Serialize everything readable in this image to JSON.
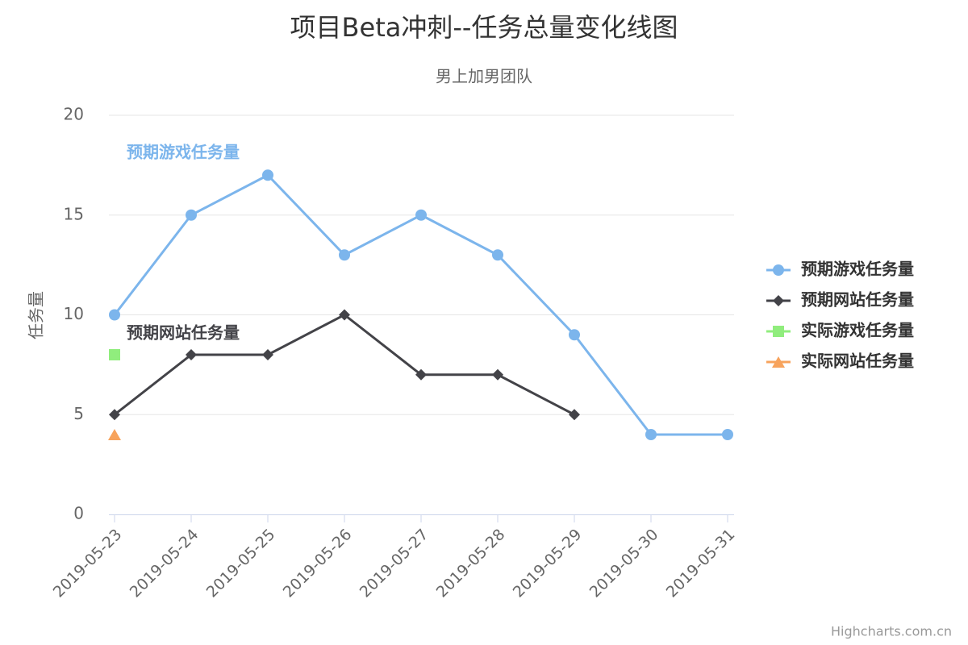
{
  "chart_data": {
    "type": "line",
    "title": "项目Beta冲刺--任务总量变化线图",
    "subtitle": "男上加男团队",
    "y_axis_label": "任务量",
    "credits": "Highcharts.com.cn",
    "categories": [
      "2019-05-23",
      "2019-05-24",
      "2019-05-25",
      "2019-05-26",
      "2019-05-27",
      "2019-05-28",
      "2019-05-29",
      "2019-05-30",
      "2019-05-31"
    ],
    "series": [
      {
        "name": "预期游戏任务量",
        "color": "#7cb5ec",
        "marker": "circle",
        "values": [
          10,
          15,
          17,
          13,
          15,
          13,
          9,
          4,
          4
        ]
      },
      {
        "name": "预期网站任务量",
        "color": "#434348",
        "marker": "diamond",
        "values": [
          5,
          8,
          8,
          10,
          7,
          7,
          5,
          null,
          null
        ]
      },
      {
        "name": "实际游戏任务量",
        "color": "#90ed7d",
        "marker": "square",
        "values": [
          8,
          null,
          null,
          null,
          null,
          null,
          null,
          null,
          null
        ]
      },
      {
        "name": "实际网站任务量",
        "color": "#f7a35c",
        "marker": "triangle",
        "values": [
          4,
          null,
          null,
          null,
          null,
          null,
          null,
          null,
          null
        ]
      }
    ],
    "ylim": [
      0,
      20
    ],
    "yticks": [
      0,
      5,
      10,
      15,
      20
    ],
    "grid": true,
    "legend": "right"
  }
}
